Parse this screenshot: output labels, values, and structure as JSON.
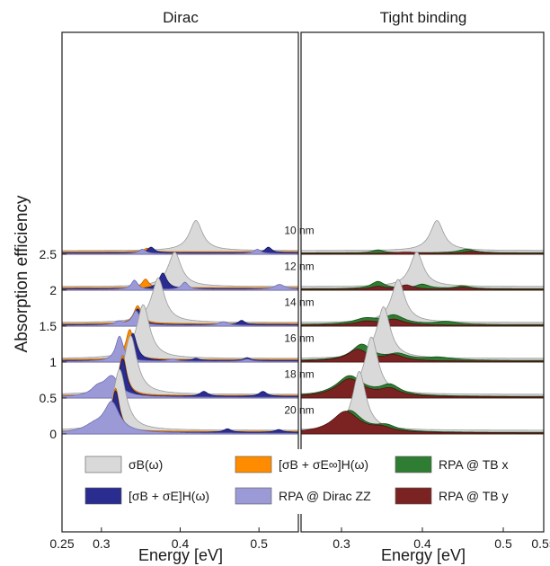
{
  "chart_data": {
    "type": "area",
    "panel_titles": [
      "Dirac",
      "Tight binding"
    ],
    "ylabel": "Absorption efficiency",
    "xlabel": "Energy [eV]",
    "left_xticks": [
      "0.25",
      "0.3",
      "0.4",
      "0.5"
    ],
    "left_xtick_values": [
      0.25,
      0.3,
      0.4,
      0.5
    ],
    "left_xlim": [
      0.25,
      0.55
    ],
    "right_xticks": [
      "0.3",
      "0.4",
      "0.5",
      "0.55"
    ],
    "right_xtick_values": [
      0.3,
      0.4,
      0.5,
      0.55
    ],
    "right_xlim": [
      0.25,
      0.55
    ],
    "yticks": [
      "0",
      "0.5",
      "1",
      "1.5",
      "2",
      "2.5"
    ],
    "ytick_values": [
      0,
      0.5,
      1,
      1.5,
      2,
      2.5
    ],
    "ylim": [
      -1.15,
      3.0
    ],
    "grid": false,
    "legend_placement": "bottom",
    "colors": {
      "sigma_B": "#d9d9d9",
      "sigma_E_inf": "#ff8c00",
      "sigma_E": "#2b2c8f",
      "rpa_dirac": "#9c9ad6",
      "rpa_tb_x": "#2e7d32",
      "rpa_tb_y": "#7b2323"
    },
    "legend": [
      {
        "key": "sigma_B",
        "label": "σB(ω)"
      },
      {
        "key": "sigma_E_inf",
        "label": "[σB + σE∞]H(ω)"
      },
      {
        "key": "rpa_tb_x",
        "label": "RPA @ TB x"
      },
      {
        "key": "sigma_E",
        "label": "[σB + σE]H(ω)"
      },
      {
        "key": "rpa_dirac",
        "label": "RPA @ Dirac ZZ"
      },
      {
        "key": "rpa_tb_y",
        "label": "RPA @ TB y"
      }
    ],
    "series": [
      {
        "label": "10 nm",
        "offset": 2.5,
        "dirac": {
          "sigma_B": [
            {
              "x": 0.42,
              "h": 0.42,
              "w": 0.01
            }
          ],
          "sigma_E_inf": [
            {
              "x": 0.358,
              "h": 0.05,
              "w": 0.005
            }
          ],
          "sigma_E": [
            {
              "x": 0.363,
              "h": 0.08,
              "w": 0.005
            },
            {
              "x": 0.512,
              "h": 0.08,
              "w": 0.005
            }
          ],
          "rpa_dirac": [
            {
              "x": 0.352,
              "h": 0.06,
              "w": 0.005
            },
            {
              "x": 0.498,
              "h": 0.06,
              "w": 0.005
            }
          ]
        },
        "tb": {
          "sigma_B": [
            {
              "x": 0.418,
              "h": 0.42,
              "w": 0.01
            }
          ],
          "rpa_tb_x": [
            {
              "x": 0.345,
              "h": 0.04,
              "w": 0.008
            },
            {
              "x": 0.455,
              "h": 0.05,
              "w": 0.012
            }
          ],
          "rpa_tb_y": [
            {
              "x": 0.38,
              "h": 0.02,
              "w": 0.015
            },
            {
              "x": 0.46,
              "h": 0.03,
              "w": 0.01
            }
          ]
        }
      },
      {
        "label": "12 nm",
        "offset": 2.0,
        "dirac": {
          "sigma_B": [
            {
              "x": 0.393,
              "h": 0.48,
              "w": 0.01
            }
          ],
          "sigma_E_inf": [
            {
              "x": 0.356,
              "h": 0.12,
              "w": 0.005
            }
          ],
          "sigma_E": [
            {
              "x": 0.378,
              "h": 0.22,
              "w": 0.006
            }
          ],
          "rpa_dirac": [
            {
              "x": 0.342,
              "h": 0.13,
              "w": 0.005
            },
            {
              "x": 0.406,
              "h": 0.1,
              "w": 0.005
            },
            {
              "x": 0.526,
              "h": 0.07,
              "w": 0.008
            }
          ]
        },
        "tb": {
          "sigma_B": [
            {
              "x": 0.393,
              "h": 0.48,
              "w": 0.01
            }
          ],
          "rpa_tb_x": [
            {
              "x": 0.345,
              "h": 0.1,
              "w": 0.01
            },
            {
              "x": 0.4,
              "h": 0.06,
              "w": 0.01
            },
            {
              "x": 0.45,
              "h": 0.04,
              "w": 0.01
            }
          ],
          "rpa_tb_y": [
            {
              "x": 0.345,
              "h": 0.04,
              "w": 0.01
            },
            {
              "x": 0.38,
              "h": 0.06,
              "w": 0.01
            },
            {
              "x": 0.45,
              "h": 0.03,
              "w": 0.01
            }
          ]
        }
      },
      {
        "label": "14 nm",
        "offset": 1.5,
        "dirac": {
          "sigma_B": [
            {
              "x": 0.372,
              "h": 0.62,
              "w": 0.01
            }
          ],
          "sigma_E_inf": [
            {
              "x": 0.346,
              "h": 0.25,
              "w": 0.006
            }
          ],
          "sigma_E": [
            {
              "x": 0.346,
              "h": 0.22,
              "w": 0.006
            },
            {
              "x": 0.478,
              "h": 0.06,
              "w": 0.005
            }
          ],
          "rpa_dirac": [
            {
              "x": 0.344,
              "h": 0.2,
              "w": 0.006
            },
            {
              "x": 0.322,
              "h": 0.05,
              "w": 0.006
            },
            {
              "x": 0.455,
              "h": 0.05,
              "w": 0.007
            }
          ]
        },
        "tb": {
          "sigma_B": [
            {
              "x": 0.37,
              "h": 0.6,
              "w": 0.01
            }
          ],
          "rpa_tb_x": [
            {
              "x": 0.33,
              "h": 0.08,
              "w": 0.018
            },
            {
              "x": 0.365,
              "h": 0.12,
              "w": 0.015
            },
            {
              "x": 0.43,
              "h": 0.04,
              "w": 0.015
            }
          ],
          "rpa_tb_y": [
            {
              "x": 0.33,
              "h": 0.05,
              "w": 0.015
            },
            {
              "x": 0.365,
              "h": 0.08,
              "w": 0.015
            }
          ]
        }
      },
      {
        "label": "16 nm",
        "offset": 1.0,
        "dirac": {
          "sigma_B": [
            {
              "x": 0.353,
              "h": 0.75,
              "w": 0.01
            }
          ],
          "sigma_E_inf": [
            {
              "x": 0.336,
              "h": 0.42,
              "w": 0.006
            }
          ],
          "sigma_E": [
            {
              "x": 0.34,
              "h": 0.38,
              "w": 0.006
            },
            {
              "x": 0.42,
              "h": 0.03,
              "w": 0.005
            },
            {
              "x": 0.485,
              "h": 0.04,
              "w": 0.005
            }
          ],
          "rpa_dirac": [
            {
              "x": 0.323,
              "h": 0.35,
              "w": 0.006
            },
            {
              "x": 0.39,
              "h": 0.03,
              "w": 0.006
            },
            {
              "x": 0.485,
              "h": 0.03,
              "w": 0.006
            }
          ]
        },
        "tb": {
          "sigma_B": [
            {
              "x": 0.352,
              "h": 0.72,
              "w": 0.01
            }
          ],
          "rpa_tb_x": [
            {
              "x": 0.325,
              "h": 0.22,
              "w": 0.015
            },
            {
              "x": 0.37,
              "h": 0.08,
              "w": 0.015
            },
            {
              "x": 0.42,
              "h": 0.04,
              "w": 0.02
            }
          ],
          "rpa_tb_y": [
            {
              "x": 0.32,
              "h": 0.16,
              "w": 0.015
            },
            {
              "x": 0.365,
              "h": 0.08,
              "w": 0.015
            }
          ]
        }
      },
      {
        "label": "18 nm",
        "offset": 0.5,
        "dirac": {
          "sigma_B": [
            {
              "x": 0.337,
              "h": 0.82,
              "w": 0.01
            }
          ],
          "sigma_E_inf": [
            {
              "x": 0.327,
              "h": 0.56,
              "w": 0.006
            }
          ],
          "sigma_E": [
            {
              "x": 0.327,
              "h": 0.53,
              "w": 0.006
            },
            {
              "x": 0.43,
              "h": 0.07,
              "w": 0.006
            },
            {
              "x": 0.505,
              "h": 0.07,
              "w": 0.006
            }
          ],
          "rpa_dirac": [
            {
              "x": 0.313,
              "h": 0.28,
              "w": 0.012
            },
            {
              "x": 0.295,
              "h": 0.1,
              "w": 0.01
            }
          ]
        },
        "tb": {
          "sigma_B": [
            {
              "x": 0.337,
              "h": 0.8,
              "w": 0.01
            }
          ],
          "rpa_tb_x": [
            {
              "x": 0.31,
              "h": 0.28,
              "w": 0.02
            },
            {
              "x": 0.36,
              "h": 0.14,
              "w": 0.015
            }
          ],
          "rpa_tb_y": [
            {
              "x": 0.31,
              "h": 0.25,
              "w": 0.02
            },
            {
              "x": 0.36,
              "h": 0.1,
              "w": 0.015
            }
          ]
        }
      },
      {
        "label": "20 nm",
        "offset": 0.0,
        "dirac": {
          "sigma_B": [
            {
              "x": 0.323,
              "h": 0.85,
              "w": 0.01
            }
          ],
          "sigma_E_inf": [
            {
              "x": 0.318,
              "h": 0.6,
              "w": 0.006
            }
          ],
          "sigma_E": [
            {
              "x": 0.318,
              "h": 0.58,
              "w": 0.006
            },
            {
              "x": 0.46,
              "h": 0.05,
              "w": 0.006
            },
            {
              "x": 0.525,
              "h": 0.04,
              "w": 0.006
            }
          ],
          "rpa_dirac": [
            {
              "x": 0.313,
              "h": 0.42,
              "w": 0.012
            },
            {
              "x": 0.29,
              "h": 0.08,
              "w": 0.015
            }
          ]
        },
        "tb": {
          "sigma_B": [
            {
              "x": 0.322,
              "h": 0.82,
              "w": 0.01
            }
          ],
          "rpa_tb_x": [
            {
              "x": 0.31,
              "h": 0.3,
              "w": 0.018
            },
            {
              "x": 0.355,
              "h": 0.08,
              "w": 0.015
            }
          ],
          "rpa_tb_y": [
            {
              "x": 0.305,
              "h": 0.3,
              "w": 0.02
            },
            {
              "x": 0.35,
              "h": 0.06,
              "w": 0.015
            }
          ]
        }
      }
    ]
  }
}
